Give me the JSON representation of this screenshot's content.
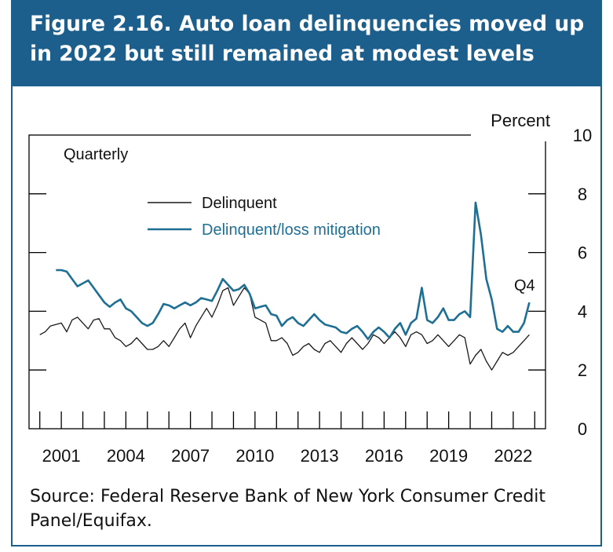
{
  "header": {
    "title": "Figure 2.16. Auto loan delinquencies moved up in 2022 but still remained at modest levels"
  },
  "source": "Source: Federal Reserve Bank of New York Consumer Credit Panel/Equifax.",
  "colors": {
    "header_bg": "#1c5f8c",
    "delinquent": "#1a1a1a",
    "mitigation": "#1f6f94"
  },
  "chart_data": {
    "type": "line",
    "frequency_label": "Quarterly",
    "y_unit_label": "Percent",
    "ylim": [
      0,
      10
    ],
    "y_ticks": [
      "0",
      "2",
      "4",
      "6",
      "8",
      "10"
    ],
    "y_tick_values": [
      0,
      2,
      4,
      6,
      8,
      10
    ],
    "x_tick_labels": [
      "2001",
      "2004",
      "2007",
      "2010",
      "2013",
      "2016",
      "2019",
      "2022"
    ],
    "x_tick_values": [
      2001,
      2004,
      2007,
      2010,
      2013,
      2016,
      2019,
      2022
    ],
    "xlim": [
      1999.5,
      2023.5
    ],
    "minor_tick_years": [
      2000,
      2001,
      2002,
      2003,
      2004,
      2005,
      2006,
      2007,
      2008,
      2009,
      2010,
      2011,
      2012,
      2013,
      2014,
      2015,
      2016,
      2017,
      2018,
      2019,
      2020,
      2021,
      2022,
      2023
    ],
    "annotation": "Q4",
    "series": [
      {
        "name": "Delinquent",
        "x": [
          2000.0,
          2000.25,
          2000.5,
          2000.75,
          2001.0,
          2001.25,
          2001.5,
          2001.75,
          2002.0,
          2002.25,
          2002.5,
          2002.75,
          2003.0,
          2003.25,
          2003.5,
          2003.75,
          2004.0,
          2004.25,
          2004.5,
          2004.75,
          2005.0,
          2005.25,
          2005.5,
          2005.75,
          2006.0,
          2006.25,
          2006.5,
          2006.75,
          2007.0,
          2007.25,
          2007.5,
          2007.75,
          2008.0,
          2008.25,
          2008.5,
          2008.75,
          2009.0,
          2009.25,
          2009.5,
          2009.75,
          2010.0,
          2010.25,
          2010.5,
          2010.75,
          2011.0,
          2011.25,
          2011.5,
          2011.75,
          2012.0,
          2012.25,
          2012.5,
          2012.75,
          2013.0,
          2013.25,
          2013.5,
          2013.75,
          2014.0,
          2014.25,
          2014.5,
          2014.75,
          2015.0,
          2015.25,
          2015.5,
          2015.75,
          2016.0,
          2016.25,
          2016.5,
          2016.75,
          2017.0,
          2017.25,
          2017.5,
          2017.75,
          2018.0,
          2018.25,
          2018.5,
          2018.75,
          2019.0,
          2019.25,
          2019.5,
          2019.75,
          2020.0,
          2020.25,
          2020.5,
          2020.75,
          2021.0,
          2021.25,
          2021.5,
          2021.75,
          2022.0,
          2022.25,
          2022.5,
          2022.75
        ],
        "values": [
          3.2,
          3.3,
          3.5,
          3.55,
          3.6,
          3.3,
          3.7,
          3.8,
          3.6,
          3.4,
          3.7,
          3.75,
          3.4,
          3.4,
          3.1,
          3.0,
          2.8,
          2.9,
          3.1,
          2.9,
          2.7,
          2.7,
          2.8,
          3.0,
          2.8,
          3.1,
          3.4,
          3.6,
          3.1,
          3.5,
          3.8,
          4.1,
          3.8,
          4.2,
          4.7,
          4.8,
          4.2,
          4.5,
          4.8,
          4.6,
          3.8,
          3.7,
          3.6,
          3.0,
          3.0,
          3.1,
          2.9,
          2.5,
          2.6,
          2.8,
          2.9,
          2.7,
          2.6,
          2.9,
          3.0,
          2.8,
          2.6,
          2.9,
          3.1,
          2.9,
          2.7,
          2.9,
          3.2,
          3.1,
          2.9,
          3.1,
          3.3,
          3.1,
          2.8,
          3.2,
          3.3,
          3.2,
          2.9,
          3.0,
          3.2,
          3.0,
          2.8,
          3.0,
          3.2,
          3.1,
          2.2,
          2.5,
          2.7,
          2.3,
          2.0,
          2.3,
          2.6,
          2.5,
          2.6,
          2.8,
          3.0,
          3.2
        ]
      },
      {
        "name": "Delinquent/loss mitigation",
        "x": [
          2000.75,
          2001.0,
          2001.25,
          2001.5,
          2001.75,
          2002.0,
          2002.25,
          2002.5,
          2002.75,
          2003.0,
          2003.25,
          2003.5,
          2003.75,
          2004.0,
          2004.25,
          2004.5,
          2004.75,
          2005.0,
          2005.25,
          2005.5,
          2005.75,
          2006.0,
          2006.25,
          2006.5,
          2006.75,
          2007.0,
          2007.25,
          2007.5,
          2007.75,
          2008.0,
          2008.25,
          2008.5,
          2008.75,
          2009.0,
          2009.25,
          2009.5,
          2009.75,
          2010.0,
          2010.25,
          2010.5,
          2010.75,
          2011.0,
          2011.25,
          2011.5,
          2011.75,
          2012.0,
          2012.25,
          2012.5,
          2012.75,
          2013.0,
          2013.25,
          2013.5,
          2013.75,
          2014.0,
          2014.25,
          2014.5,
          2014.75,
          2015.0,
          2015.25,
          2015.5,
          2015.75,
          2016.0,
          2016.25,
          2016.5,
          2016.75,
          2017.0,
          2017.25,
          2017.5,
          2017.75,
          2018.0,
          2018.25,
          2018.5,
          2018.75,
          2019.0,
          2019.25,
          2019.5,
          2019.75,
          2020.0,
          2020.25,
          2020.5,
          2020.75,
          2021.0,
          2021.25,
          2021.5,
          2021.75,
          2022.0,
          2022.25,
          2022.5,
          2022.75
        ],
        "values": [
          5.4,
          5.4,
          5.35,
          5.1,
          4.85,
          4.95,
          5.05,
          4.8,
          4.55,
          4.3,
          4.15,
          4.3,
          4.4,
          4.1,
          4.0,
          3.8,
          3.6,
          3.5,
          3.6,
          3.9,
          4.25,
          4.2,
          4.1,
          4.2,
          4.3,
          4.2,
          4.3,
          4.45,
          4.4,
          4.35,
          4.7,
          5.1,
          4.9,
          4.7,
          4.75,
          4.9,
          4.6,
          4.1,
          4.15,
          4.2,
          3.9,
          3.85,
          3.5,
          3.7,
          3.8,
          3.6,
          3.5,
          3.7,
          3.9,
          3.7,
          3.55,
          3.5,
          3.45,
          3.3,
          3.25,
          3.4,
          3.5,
          3.3,
          3.05,
          3.3,
          3.45,
          3.3,
          3.1,
          3.4,
          3.6,
          3.2,
          3.6,
          3.75,
          4.8,
          3.7,
          3.6,
          3.8,
          4.1,
          3.7,
          3.7,
          3.9,
          4.0,
          3.8,
          7.7,
          6.6,
          5.1,
          4.4,
          3.4,
          3.3,
          3.5,
          3.3,
          3.3,
          3.6,
          4.3
        ]
      }
    ]
  }
}
